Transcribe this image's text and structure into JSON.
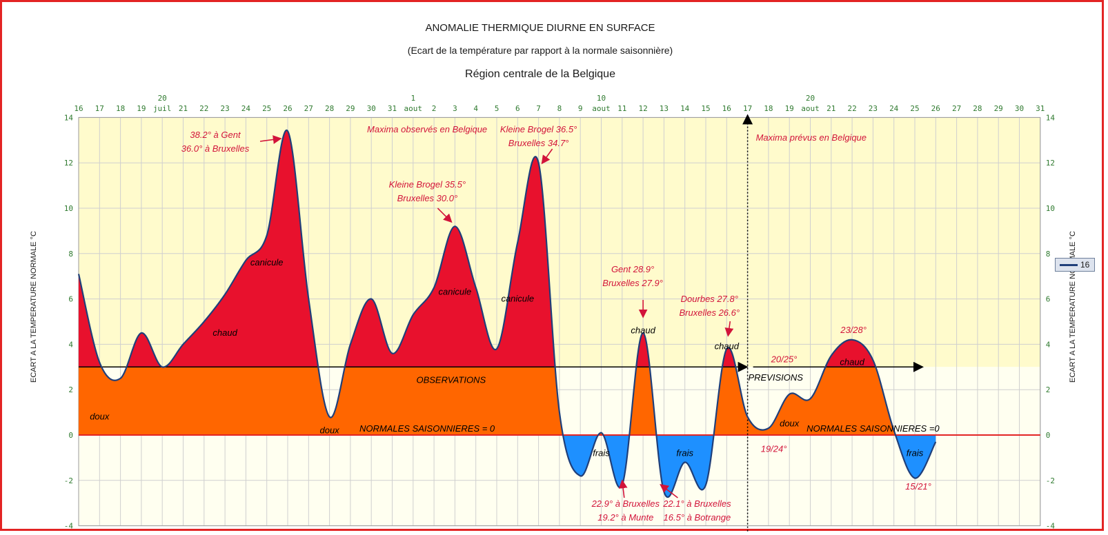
{
  "chart_data": {
    "type": "area",
    "title": "ANOMALIE THERMIQUE DIURNE EN SURFACE",
    "subtitle": "(Ecart de la température par rapport à la normale saisonnière)",
    "region": "Région centrale de la Belgique",
    "ylabel": "ECART A LA TEMPERATURE NORMALE °C",
    "ylim": [
      -4,
      14
    ],
    "yticks": [
      -4,
      -2,
      0,
      2,
      4,
      6,
      8,
      10,
      12,
      14
    ],
    "grid": true,
    "legend": {
      "label": "16",
      "placement": "right"
    },
    "x_labels": [
      {
        "day": "16",
        "month": ""
      },
      {
        "day": "17",
        "month": ""
      },
      {
        "day": "18",
        "month": ""
      },
      {
        "day": "19",
        "month": ""
      },
      {
        "day": "20",
        "month": "juil"
      },
      {
        "day": "21",
        "month": ""
      },
      {
        "day": "22",
        "month": ""
      },
      {
        "day": "23",
        "month": ""
      },
      {
        "day": "24",
        "month": ""
      },
      {
        "day": "25",
        "month": ""
      },
      {
        "day": "26",
        "month": ""
      },
      {
        "day": "27",
        "month": ""
      },
      {
        "day": "28",
        "month": ""
      },
      {
        "day": "29",
        "month": ""
      },
      {
        "day": "30",
        "month": ""
      },
      {
        "day": "31",
        "month": ""
      },
      {
        "day": "1",
        "month": "aout"
      },
      {
        "day": "2",
        "month": ""
      },
      {
        "day": "3",
        "month": ""
      },
      {
        "day": "4",
        "month": ""
      },
      {
        "day": "5",
        "month": ""
      },
      {
        "day": "6",
        "month": ""
      },
      {
        "day": "7",
        "month": ""
      },
      {
        "day": "8",
        "month": ""
      },
      {
        "day": "9",
        "month": ""
      },
      {
        "day": "10",
        "month": "aout"
      },
      {
        "day": "11",
        "month": ""
      },
      {
        "day": "12",
        "month": ""
      },
      {
        "day": "13",
        "month": ""
      },
      {
        "day": "14",
        "month": ""
      },
      {
        "day": "15",
        "month": ""
      },
      {
        "day": "16",
        "month": ""
      },
      {
        "day": "17",
        "month": ""
      },
      {
        "day": "18",
        "month": ""
      },
      {
        "day": "19",
        "month": ""
      },
      {
        "day": "20",
        "month": "aout"
      },
      {
        "day": "21",
        "month": ""
      },
      {
        "day": "22",
        "month": ""
      },
      {
        "day": "23",
        "month": ""
      },
      {
        "day": "24",
        "month": ""
      },
      {
        "day": "25",
        "month": ""
      },
      {
        "day": "26",
        "month": ""
      },
      {
        "day": "27",
        "month": ""
      },
      {
        "day": "28",
        "month": ""
      },
      {
        "day": "29",
        "month": ""
      },
      {
        "day": "30",
        "month": ""
      },
      {
        "day": "31",
        "month": ""
      }
    ],
    "series": [
      {
        "dates": [
          "2019-07-16",
          "2019-07-17",
          "2019-07-18",
          "2019-07-19",
          "2019-07-20",
          "2019-07-21",
          "2019-07-22",
          "2019-07-23",
          "2019-07-24",
          "2019-07-25",
          "2019-07-26",
          "2019-07-27",
          "2019-07-28",
          "2019-07-29",
          "2019-07-30",
          "2019-07-31",
          "2019-08-01",
          "2019-08-02",
          "2019-08-03",
          "2019-08-04",
          "2019-08-05",
          "2019-08-06",
          "2019-08-07",
          "2019-08-08",
          "2019-08-09",
          "2019-08-10",
          "2019-08-11",
          "2019-08-12",
          "2019-08-13",
          "2019-08-14",
          "2019-08-15",
          "2019-08-16",
          "2019-08-17",
          "2019-08-18",
          "2019-08-19",
          "2019-08-20",
          "2019-08-21",
          "2019-08-22",
          "2019-08-23",
          "2019-08-24",
          "2019-08-25",
          "2019-08-26"
        ],
        "values": [
          7.1,
          3.2,
          2.5,
          4.5,
          3.0,
          4.0,
          5.0,
          6.2,
          7.7,
          8.8,
          13.4,
          6.0,
          0.8,
          4.0,
          6.0,
          3.6,
          5.3,
          6.5,
          9.2,
          6.5,
          3.8,
          8.5,
          12.0,
          1.0,
          -1.8,
          0.1,
          -2.2,
          4.5,
          -2.5,
          -1.2,
          -2.2,
          3.8,
          0.8,
          0.3,
          1.8,
          1.6,
          3.5,
          4.2,
          3.3,
          0.2,
          -1.9,
          -0.3
        ]
      }
    ],
    "reference_lines": {
      "normal": 0,
      "category_band": 3
    },
    "vertical_marker": {
      "date": "2019-08-17",
      "label": "observations / previsions split"
    },
    "section_labels": {
      "observed_title": "Maxima observés en Belgique",
      "forecast_title": "Maxima prévus en Belgique",
      "observations": "OBSERVATIONS",
      "previsions": "PREVISIONS",
      "normales_left": "NORMALES SAISONNIERES = 0",
      "normales_right": "NORMALES SAISONNIERES =0"
    },
    "annotations": [
      {
        "date": "2019-07-26",
        "lines": [
          "38.2° à Gent",
          "36.0° à Bruxelles"
        ],
        "color": "#d2143a"
      },
      {
        "date": "2019-08-03",
        "lines": [
          "Kleine Brogel 35.5°",
          "Bruxelles 30.0°"
        ],
        "color": "#d2143a"
      },
      {
        "date": "2019-08-07",
        "lines": [
          "Kleine Brogel 36.5°",
          "Bruxelles 34.7°"
        ],
        "color": "#d2143a"
      },
      {
        "date": "2019-08-12",
        "lines": [
          "Gent 28.9°",
          "Bruxelles 27.9°"
        ],
        "color": "#d2143a"
      },
      {
        "date": "2019-08-16",
        "lines": [
          "Dourbes 27.8°",
          "Bruxelles 26.6°"
        ],
        "color": "#d2143a"
      },
      {
        "date": "2019-08-11",
        "lines": [
          "22.9° à Bruxelles",
          "19.2° à Munte"
        ],
        "color": "#d2143a"
      },
      {
        "date": "2019-08-13",
        "lines": [
          "22.1° à Bruxelles",
          "16.5° à Botrange"
        ],
        "color": "#d2143a"
      },
      {
        "date": "2019-08-17",
        "lines": [
          "19/24°"
        ],
        "color": "#d2143a"
      },
      {
        "date": "2019-08-20",
        "lines": [
          "20/25°"
        ],
        "color": "#d2143a"
      },
      {
        "date": "2019-08-22",
        "lines": [
          "23/28°"
        ],
        "color": "#d2143a"
      },
      {
        "date": "2019-08-25",
        "lines": [
          "15/21°"
        ],
        "color": "#d2143a"
      }
    ],
    "category_labels": [
      {
        "text": "doux",
        "date": "2019-07-17",
        "value": 0.8
      },
      {
        "text": "chaud",
        "date": "2019-07-23",
        "value": 4.5
      },
      {
        "text": "canicule",
        "date": "2019-07-25",
        "value": 7.6
      },
      {
        "text": "doux",
        "date": "2019-07-28",
        "value": 0.2
      },
      {
        "text": "canicule",
        "date": "2019-08-03",
        "value": 6.3
      },
      {
        "text": "canicule",
        "date": "2019-08-06",
        "value": 6.0
      },
      {
        "text": "frais",
        "date": "2019-08-10",
        "value": -0.8
      },
      {
        "text": "chaud",
        "date": "2019-08-12",
        "value": 4.6
      },
      {
        "text": "frais",
        "date": "2019-08-14",
        "value": -0.8
      },
      {
        "text": "chaud",
        "date": "2019-08-16",
        "value": 3.9
      },
      {
        "text": "doux",
        "date": "2019-08-19",
        "value": 0.5
      },
      {
        "text": "chaud",
        "date": "2019-08-22",
        "value": 3.2
      },
      {
        "text": "frais",
        "date": "2019-08-25",
        "value": -0.8
      }
    ],
    "colors": {
      "warm_fill": "#e8112d",
      "band_fill": "#ff6600",
      "cold_fill": "#1e90ff",
      "curve": "#1f3f7a",
      "plot_upper_bg": "#fffbcc",
      "plot_lower_bg": "#fffff0",
      "annotation": "#d2143a",
      "frame": "#e32424"
    }
  }
}
